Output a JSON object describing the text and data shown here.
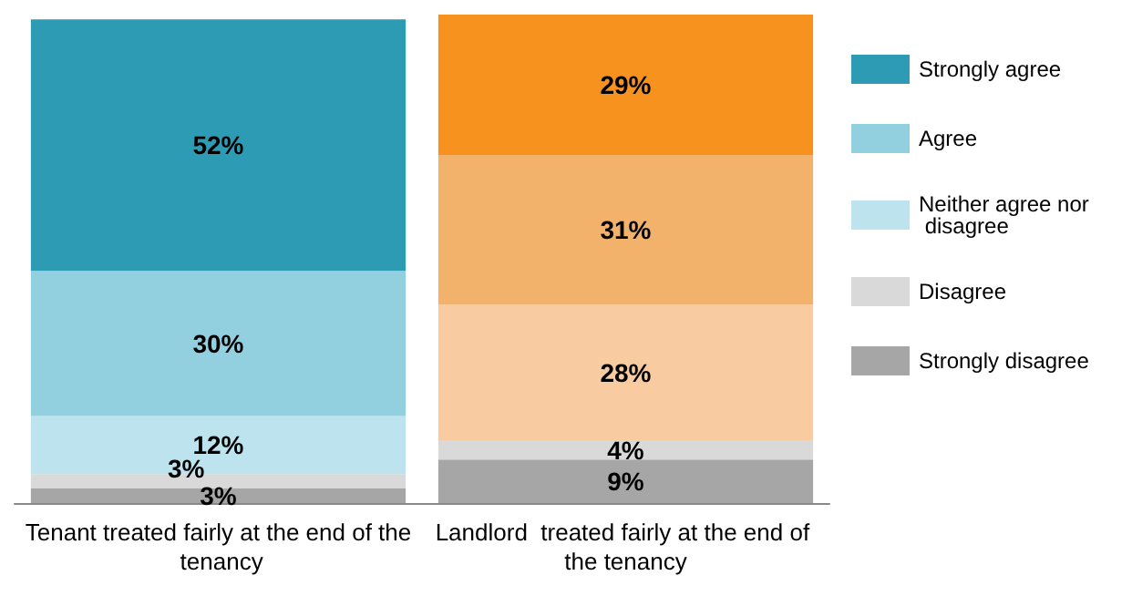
{
  "chart_data": {
    "type": "bar",
    "stacked": true,
    "legend": "right",
    "tick_labels": "x",
    "categories": [
      "Tenant treated fairly at the end of the tenancy",
      "Landlord  treated fairly at the end of the tenancy"
    ],
    "series": [
      {
        "name": "Strongly disagree",
        "color": "#a6a6a6",
        "colors": [
          "#a6a6a6",
          "#a6a6a6"
        ],
        "values": [
          3,
          9
        ],
        "value_labels": [
          "3%",
          "9%"
        ]
      },
      {
        "name": "Disagree",
        "color": "#d9d9d9",
        "colors": [
          "#d9d9d9",
          "#d9d9d9"
        ],
        "values": [
          3,
          4
        ],
        "value_labels": [
          "3%",
          "4%"
        ]
      },
      {
        "name": "Neither agree nor disagree",
        "color": "#bde4ee",
        "colors": [
          "#bde4ee",
          "#f8cba0"
        ],
        "values": [
          12,
          28
        ],
        "value_labels": [
          "12%",
          "28%"
        ]
      },
      {
        "name": "Agree",
        "color": "#92d0e0",
        "colors": [
          "#92d0e0",
          "#f3b26b"
        ],
        "values": [
          30,
          31
        ],
        "value_labels": [
          "30%",
          "31%"
        ]
      },
      {
        "name": "Strongly agree",
        "color": "#2e9bb5",
        "colors": [
          "#2e9bb5",
          "#f7921e"
        ],
        "values": [
          52,
          29
        ],
        "value_labels": [
          "52%",
          "29%"
        ]
      }
    ]
  }
}
